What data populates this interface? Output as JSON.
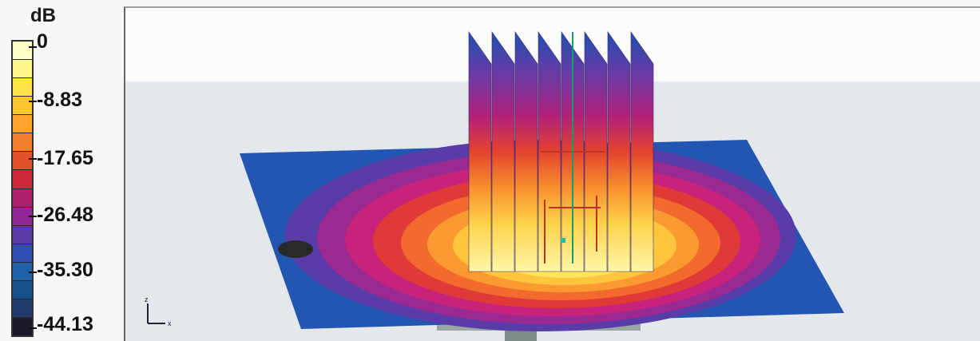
{
  "legend": {
    "unit": "dB",
    "ticks": [
      "0",
      "-8.83",
      "-17.65",
      "-26.48",
      "-35.30",
      "-44.13"
    ],
    "colors": [
      "#ffffc8",
      "#fff58a",
      "#ffe24a",
      "#ffc533",
      "#fda431",
      "#f47f2e",
      "#e4502e",
      "#cc2a3c",
      "#ae1f6e",
      "#8e2798",
      "#5b3aa6",
      "#2f4fb3",
      "#1f62a9",
      "#16508a",
      "#223a6a",
      "#1a1a2a"
    ]
  },
  "viewport": {
    "axis_icon": "xyz-axes-icon",
    "axis_labels": {
      "z": "z",
      "x": "x"
    }
  }
}
